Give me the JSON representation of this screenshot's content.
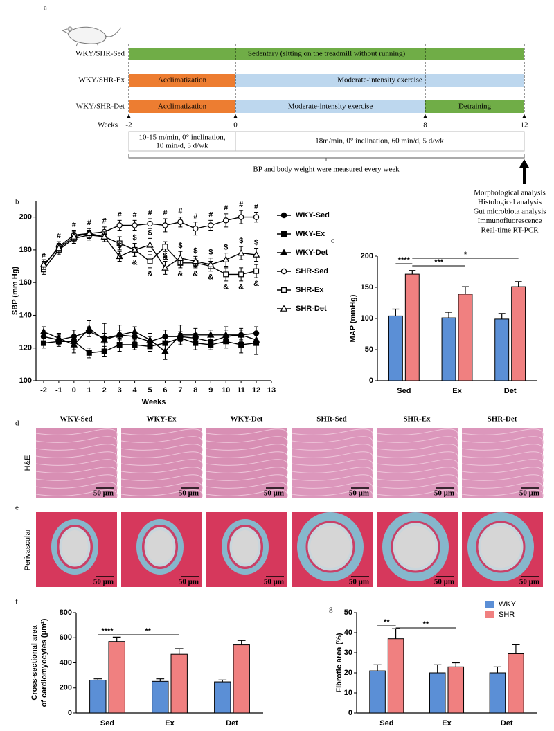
{
  "panel_a": {
    "letter": "a",
    "rows": [
      "WKY/SHR-Sed",
      "WKY/SHR-Ex",
      "WKY/SHR-Det"
    ],
    "phases": [
      [
        {
          "label": "Sedentary (sitting on the treadmill without running)",
          "color": "#70ad47"
        }
      ],
      [
        {
          "label": "Acclimatization",
          "color": "#ed7d31"
        },
        {
          "label": "Moderate-intensity exercise",
          "color": "#bdd7ee"
        }
      ],
      [
        {
          "label": "Acclimatization",
          "color": "#ed7d31"
        },
        {
          "label": "Moderate-intensity exercise",
          "color": "#bdd7ee"
        },
        {
          "label": "Detraining",
          "color": "#70ad47"
        }
      ]
    ],
    "weeks_label": "Weeks",
    "weeks": [
      -2,
      0,
      8,
      12
    ],
    "protocols": [
      [
        "10-15 m/min, 0° inclination,",
        "10 min/d, 5 d/wk"
      ],
      [
        "18m/min, 0° inclination, 60 min/d, 5 d/wk"
      ]
    ],
    "measurement": "BP and body weight were measured every week",
    "analyses": [
      "Morphological analysis",
      "Histological analysis",
      "Gut microbiota analysis",
      "Immunofluorescence",
      "Real-time RT-PCR"
    ]
  },
  "chart_data": [
    {
      "letter": "b",
      "type": "line",
      "ylabel": "SBP (mm Hg)",
      "xlabel": "Weeks",
      "x": [
        -2,
        -1,
        0,
        1,
        2,
        3,
        4,
        5,
        6,
        7,
        8,
        9,
        10,
        11,
        12
      ],
      "xlim": [
        -2.5,
        13
      ],
      "xticks": [
        -2,
        -1,
        0,
        1,
        2,
        3,
        4,
        5,
        6,
        7,
        8,
        9,
        10,
        11,
        12,
        13
      ],
      "ylim": [
        100,
        210
      ],
      "yticks": [
        100,
        120,
        140,
        160,
        180,
        200
      ],
      "legend": "right",
      "series": [
        {
          "name": "WKY-Sed",
          "color": "#000000",
          "marker": "circle",
          "filled": true,
          "values": [
            127,
            125,
            127,
            130,
            126,
            128,
            127,
            124,
            127,
            127,
            126,
            124,
            127,
            128,
            129
          ],
          "errors": [
            4,
            3,
            4,
            3,
            3,
            3,
            3,
            3,
            4,
            3,
            3,
            3,
            4,
            3,
            4
          ]
        },
        {
          "name": "WKY-Ex",
          "color": "#000000",
          "marker": "square",
          "filled": true,
          "values": [
            123,
            124,
            124,
            117,
            118,
            122,
            122,
            121,
            123,
            126,
            123,
            122,
            124,
            122,
            123
          ],
          "errors": [
            3,
            3,
            7,
            3,
            3,
            4,
            3,
            3,
            4,
            3,
            4,
            3,
            4,
            5,
            7
          ]
        },
        {
          "name": "WKY-Det",
          "color": "#000000",
          "marker": "triangle",
          "filled": true,
          "values": [
            130,
            126,
            122,
            132,
            125,
            128,
            130,
            125,
            118,
            128,
            128,
            128,
            128,
            128,
            125
          ],
          "errors": [
            3,
            3,
            3,
            5,
            10,
            6,
            3,
            4,
            5,
            6,
            4,
            3,
            5,
            4,
            3
          ]
        },
        {
          "name": "SHR-Sed",
          "color": "#000000",
          "marker": "circle",
          "filled": false,
          "values": [
            170,
            182,
            189,
            190,
            191,
            195,
            195,
            196,
            195,
            197,
            193,
            195,
            198,
            200,
            200
          ],
          "errors": [
            3,
            3,
            3,
            3,
            3,
            3,
            3,
            3,
            4,
            3,
            4,
            3,
            4,
            4,
            3
          ]
        },
        {
          "name": "SHR-Ex",
          "color": "#000000",
          "marker": "square",
          "filled": false,
          "values": [
            168,
            180,
            187,
            189,
            188,
            184,
            180,
            173,
            182,
            172,
            172,
            170,
            165,
            165,
            167
          ],
          "errors": [
            3,
            3,
            3,
            3,
            3,
            4,
            4,
            4,
            3,
            3,
            3,
            3,
            4,
            4,
            4
          ]
        },
        {
          "name": "SHR-Det",
          "color": "#000000",
          "marker": "triangle",
          "filled": false,
          "values": [
            171,
            181,
            188,
            190,
            188,
            176,
            180,
            183,
            169,
            175,
            173,
            171,
            174,
            178,
            177
          ],
          "errors": [
            3,
            3,
            3,
            3,
            3,
            3,
            4,
            4,
            4,
            4,
            3,
            4,
            4,
            4,
            4
          ]
        }
      ],
      "markers": [
        {
          "symbol": "#",
          "x": [
            -2,
            -1,
            0,
            1,
            2,
            3,
            4,
            5,
            6,
            7,
            8,
            9,
            10,
            11,
            12
          ]
        },
        {
          "symbol": "$",
          "x": [
            3,
            4,
            5,
            6,
            7,
            8,
            9,
            10,
            11,
            12
          ]
        },
        {
          "symbol": "&",
          "x": [
            3,
            4,
            5,
            6,
            7,
            8,
            9,
            10,
            11,
            12
          ]
        }
      ]
    },
    {
      "letter": "c",
      "type": "bar",
      "ylabel": [
        "MAP (mmHg)"
      ],
      "categories": [
        "Sed",
        "Ex",
        "Det"
      ],
      "ylim": [
        0,
        200
      ],
      "yticks": [
        0,
        50,
        100,
        150,
        200
      ],
      "series": [
        {
          "color": "#5b8fd6",
          "values": [
            104,
            101,
            99
          ],
          "errors": [
            11,
            9,
            9
          ]
        },
        {
          "color": "#f08080",
          "values": [
            171,
            139,
            151
          ],
          "errors": [
            6,
            12,
            8
          ]
        }
      ],
      "significance": [
        "****",
        "***",
        "*"
      ]
    },
    {
      "letter": "f",
      "type": "bar",
      "ylabel": [
        "Cross-sectional area",
        "of cardiomyocytes (μm²)"
      ],
      "categories": [
        "Sed",
        "Ex",
        "Det"
      ],
      "ylim": [
        0,
        800
      ],
      "yticks": [
        0,
        200,
        400,
        600,
        800
      ],
      "series": [
        {
          "color": "#5b8fd6",
          "values": [
            262,
            252,
            248
          ],
          "errors": [
            10,
            20,
            15
          ]
        },
        {
          "color": "#f08080",
          "values": [
            570,
            468,
            543
          ],
          "errors": [
            35,
            45,
            35
          ]
        }
      ],
      "significance": [
        "****",
        "**"
      ]
    },
    {
      "letter": "g",
      "type": "bar",
      "ylabel": [
        "Fibrotic area (%)"
      ],
      "categories": [
        "Sed",
        "Ex",
        "Det"
      ],
      "ylim": [
        0,
        50
      ],
      "yticks": [
        0,
        10,
        20,
        30,
        40,
        50
      ],
      "legend": "upper right",
      "series": [
        {
          "name": "WKY",
          "color": "#5b8fd6",
          "values": [
            21,
            20,
            20
          ],
          "errors": [
            3,
            4,
            3
          ]
        },
        {
          "name": "SHR",
          "color": "#f08080",
          "values": [
            37,
            23,
            29.5
          ],
          "errors": [
            5,
            2,
            4.5
          ]
        }
      ],
      "significance": [
        "**",
        "**"
      ]
    }
  ],
  "histology": {
    "letters": [
      "d",
      "e"
    ],
    "groups": [
      "WKY-Sed",
      "WKY-Ex",
      "WKY-Det",
      "SHR-Sed",
      "SHR-Ex",
      "SHR-Det"
    ],
    "rows": [
      "H&E",
      "Perivascular"
    ],
    "scale_bar": "50 μm"
  }
}
